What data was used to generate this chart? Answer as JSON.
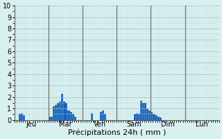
{
  "xlabel": "Précipitations 24h ( mm )",
  "ylabel_values": [
    0,
    1,
    2,
    3,
    4,
    5,
    6,
    7,
    8,
    9,
    10
  ],
  "ylim": [
    0,
    10
  ],
  "background_color": "#d8f0f0",
  "bar_color": "#1060c0",
  "major_grid_color": "#a0c0c0",
  "minor_grid_color": "#c0dada",
  "day_line_color": "#707070",
  "day_labels": [
    "Jeu",
    "Mar",
    "Ven",
    "Sam",
    "Dim",
    "Lun"
  ],
  "num_bars": 96,
  "bars_per_day": 16,
  "bar_values": [
    0,
    0,
    0.5,
    0.6,
    0.4,
    0,
    0,
    0,
    0,
    0,
    0,
    0,
    0,
    0,
    0,
    0,
    0.3,
    0.3,
    1.2,
    1.3,
    1.5,
    1.6,
    2.3,
    1.6,
    1.5,
    0.8,
    0.7,
    0.5,
    0.3,
    0,
    0,
    0,
    0,
    0,
    0,
    0,
    0.6,
    0,
    0,
    0,
    0.7,
    0.8,
    0.5,
    0,
    0,
    0,
    0,
    0,
    0,
    0,
    0,
    0,
    0,
    0,
    0,
    0,
    0.5,
    0.6,
    0.5,
    1.7,
    1.5,
    1.5,
    1.0,
    0.8,
    0.7,
    0.5,
    0.4,
    0.3,
    0.2,
    0,
    0,
    0,
    0,
    0,
    0,
    0,
    0,
    0,
    0,
    0,
    0,
    0,
    0,
    0,
    0,
    0,
    0,
    0,
    0,
    0,
    0,
    0,
    0,
    0,
    0,
    0
  ],
  "figsize": [
    3.2,
    2.0
  ],
  "dpi": 100,
  "xlabel_fontsize": 8,
  "ytick_fontsize": 7,
  "xtick_fontsize": 7
}
